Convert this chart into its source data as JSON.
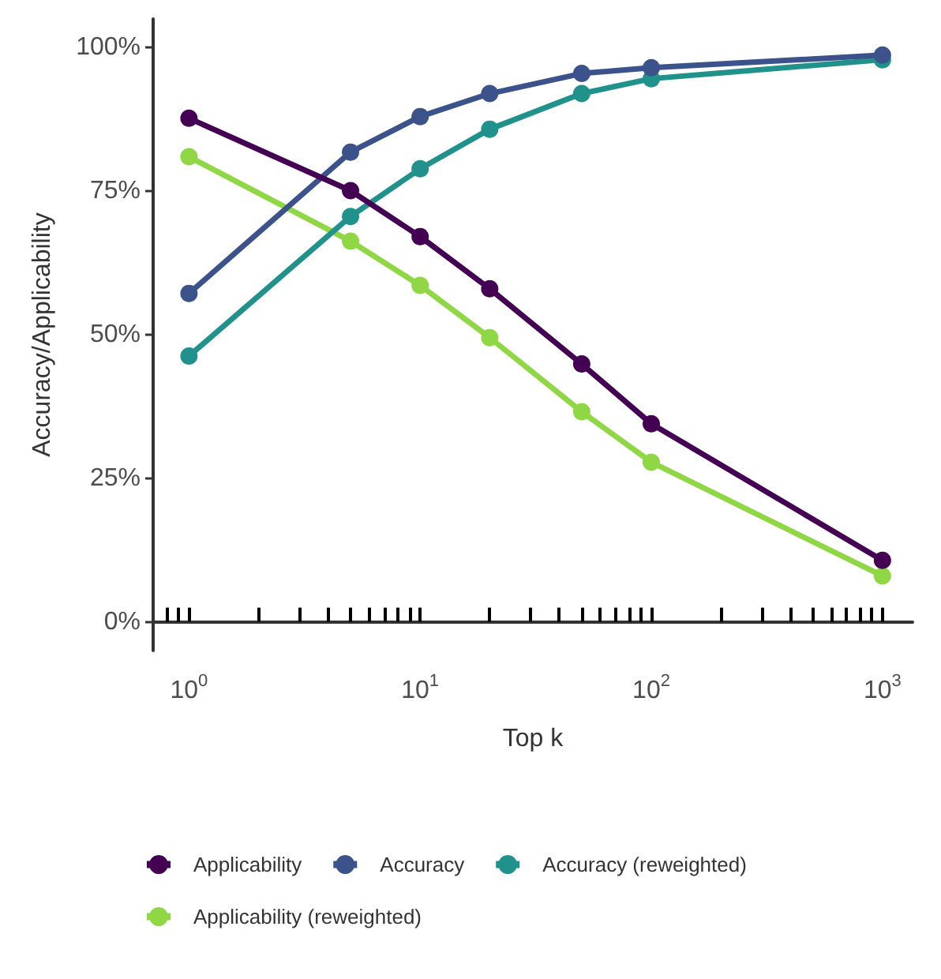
{
  "chart_data": {
    "type": "line",
    "xlabel": "Top k",
    "ylabel": "Accuracy/Applicability",
    "log": "x",
    "x": [
      1,
      5,
      10,
      20,
      50,
      100,
      1000
    ],
    "xlim": [
      0.7,
      1350
    ],
    "xticks": [
      {
        "value": 0.8,
        "label": null
      },
      {
        "value": 0.9,
        "label": null
      },
      {
        "value": 1,
        "label": "10$^{0}$"
      },
      {
        "value": 2,
        "label": null
      },
      {
        "value": 3,
        "label": null
      },
      {
        "value": 4,
        "label": null
      },
      {
        "value": 5,
        "label": null
      },
      {
        "value": 6,
        "label": null
      },
      {
        "value": 7,
        "label": null
      },
      {
        "value": 8,
        "label": null
      },
      {
        "value": 9,
        "label": null
      },
      {
        "value": 10,
        "label": "10$^{1}$"
      },
      {
        "value": 20,
        "label": null
      },
      {
        "value": 30,
        "label": null
      },
      {
        "value": 40,
        "label": null
      },
      {
        "value": 50,
        "label": null
      },
      {
        "value": 60,
        "label": null
      },
      {
        "value": 70,
        "label": null
      },
      {
        "value": 80,
        "label": null
      },
      {
        "value": 90,
        "label": null
      },
      {
        "value": 100,
        "label": "10$^{2}$"
      },
      {
        "value": 200,
        "label": null
      },
      {
        "value": 300,
        "label": null
      },
      {
        "value": 400,
        "label": null
      },
      {
        "value": 500,
        "label": null
      },
      {
        "value": 600,
        "label": null
      },
      {
        "value": 700,
        "label": null
      },
      {
        "value": 800,
        "label": null
      },
      {
        "value": 900,
        "label": null
      },
      {
        "value": 1000,
        "label": "10$^{3}$"
      }
    ],
    "ylim": [
      -5,
      105
    ],
    "yticks": [
      {
        "value": 0,
        "label": "0%"
      },
      {
        "value": 25,
        "label": "25%"
      },
      {
        "value": 50,
        "label": "50%"
      },
      {
        "value": 75,
        "label": "75%"
      },
      {
        "value": 100,
        "label": "100%"
      }
    ],
    "grid": false,
    "legend": "bottom",
    "marker": "circle",
    "line_style": "solid",
    "series": [
      {
        "name": "Applicability",
        "color": "#440154",
        "values": [
          87.7,
          75.1,
          67.1,
          58.0,
          44.9,
          34.5,
          10.7
        ]
      },
      {
        "name": "Accuracy",
        "color": "#3b528b",
        "values": [
          57.2,
          81.8,
          88.0,
          92.0,
          95.5,
          96.5,
          98.7
        ]
      },
      {
        "name": "Accuracy (reweighted)",
        "color": "#21918c",
        "values": [
          46.3,
          70.6,
          78.9,
          85.8,
          92.0,
          94.6,
          97.9
        ]
      },
      {
        "name": "Applicability (reweighted)",
        "color": "#8fd744",
        "values": [
          81.0,
          66.3,
          58.6,
          49.5,
          36.6,
          27.8,
          8.0
        ]
      }
    ]
  }
}
